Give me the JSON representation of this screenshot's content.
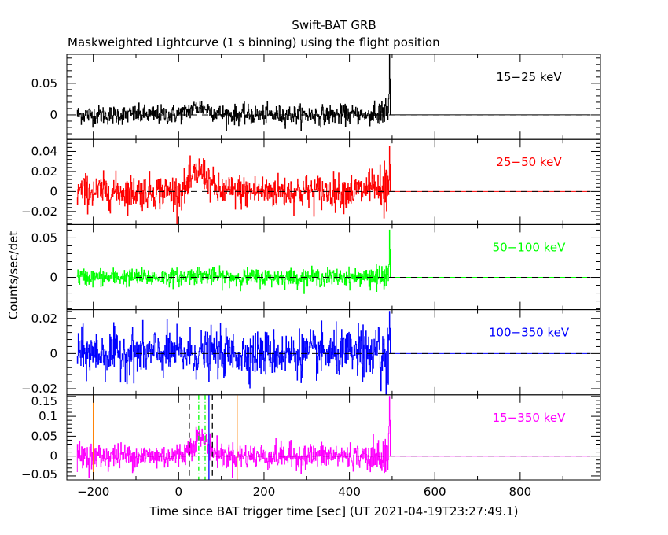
{
  "chart_data": {
    "type": "line",
    "title": "Swift-BAT GRB",
    "subtitle": "Maskweighted Lightcurve (1 s binning) using the flight position",
    "xlabel": "Time since BAT trigger time [sec] (UT 2021-04-19T23:27:49.1)",
    "ylabel": "Counts/sec/det",
    "xlim": [
      -262,
      988
    ],
    "x_ticks": [
      -200,
      0,
      200,
      400,
      600,
      800
    ],
    "x_tick_labels": [
      "−200",
      "0",
      "200",
      "400",
      "600",
      "800"
    ],
    "data_time_range": [
      -238,
      495
    ],
    "flat_zero_until": 965,
    "zero_line_start": -100,
    "grid": false,
    "panels": [
      {
        "name": "15-25 keV",
        "label": "15−25 keV",
        "color": "#000000",
        "ylim": [
          -0.039,
          0.096
        ],
        "y_ticks": [
          0,
          0.05
        ],
        "y_tick_labels": [
          "0",
          "0.05"
        ],
        "noise_sigma": 0.0075,
        "peak": {
          "t": 50,
          "amplitude": 0.012,
          "width": 25
        },
        "end_spike_max": 0.095
      },
      {
        "name": "25-50 keV",
        "label": "25−50 keV",
        "color": "#ff0000",
        "ylim": [
          -0.033,
          0.052
        ],
        "y_ticks": [
          -0.02,
          0,
          0.02,
          0.04
        ],
        "y_tick_labels": [
          "−0.02",
          "0",
          "0.02",
          "0.04"
        ],
        "noise_sigma": 0.0085,
        "peak": {
          "t": 50,
          "amplitude": 0.02,
          "width": 18
        },
        "end_spike_max": 0.045
      },
      {
        "name": "50-100 keV",
        "label": "50−100 keV",
        "color": "#00ff00",
        "ylim": [
          -0.041,
          0.067
        ],
        "y_ticks": [
          0,
          0.05
        ],
        "y_tick_labels": [
          "0",
          "0.05"
        ],
        "noise_sigma": 0.0055,
        "peak": {
          "t": 50,
          "amplitude": 0.003,
          "width": 20
        },
        "end_spike_max": 0.06
      },
      {
        "name": "100-350 keV",
        "label": "100−350 keV",
        "color": "#0000ff",
        "ylim": [
          -0.0235,
          0.025
        ],
        "y_ticks": [
          -0.02,
          0,
          0.02
        ],
        "y_tick_labels": [
          "−0.02",
          "0",
          "0.02"
        ],
        "noise_sigma": 0.0065,
        "peak": {
          "t": 50,
          "amplitude": 0.0,
          "width": 20
        },
        "end_spike_max": 0.024
      },
      {
        "name": "15-350 keV",
        "label": "15−350 keV",
        "color": "#ff00ff",
        "ylim": [
          -0.06,
          0.154
        ],
        "y_ticks": [
          -0.05,
          0,
          0.05,
          0.1,
          0.15
        ],
        "y_tick_labels": [
          "−0.05",
          "0",
          "0.05",
          "0.1",
          "0.15"
        ],
        "noise_sigma": 0.016,
        "peak": {
          "t": 50,
          "amplitude": 0.045,
          "width": 20
        },
        "end_spike_max": 0.15
      }
    ],
    "markers": [
      {
        "t": -200,
        "style": "solid",
        "color": "#ff8000",
        "name": "orange-marker-start"
      },
      {
        "t": 137,
        "style": "solid",
        "color": "#ff8000",
        "name": "orange-marker-end"
      },
      {
        "t": 25,
        "style": "dashed",
        "color": "#000000",
        "name": "t90-start-marker"
      },
      {
        "t": 79,
        "style": "dashed",
        "color": "#000000",
        "name": "t90-end-marker"
      },
      {
        "t": 47,
        "style": "dashdot",
        "color": "#00ff00",
        "name": "t50-start-marker"
      },
      {
        "t": 62,
        "style": "dashdot",
        "color": "#00ff00",
        "name": "t50-end-marker"
      },
      {
        "t": 71,
        "style": "solid",
        "color": "#0000ff",
        "name": "peak-marker"
      }
    ]
  }
}
